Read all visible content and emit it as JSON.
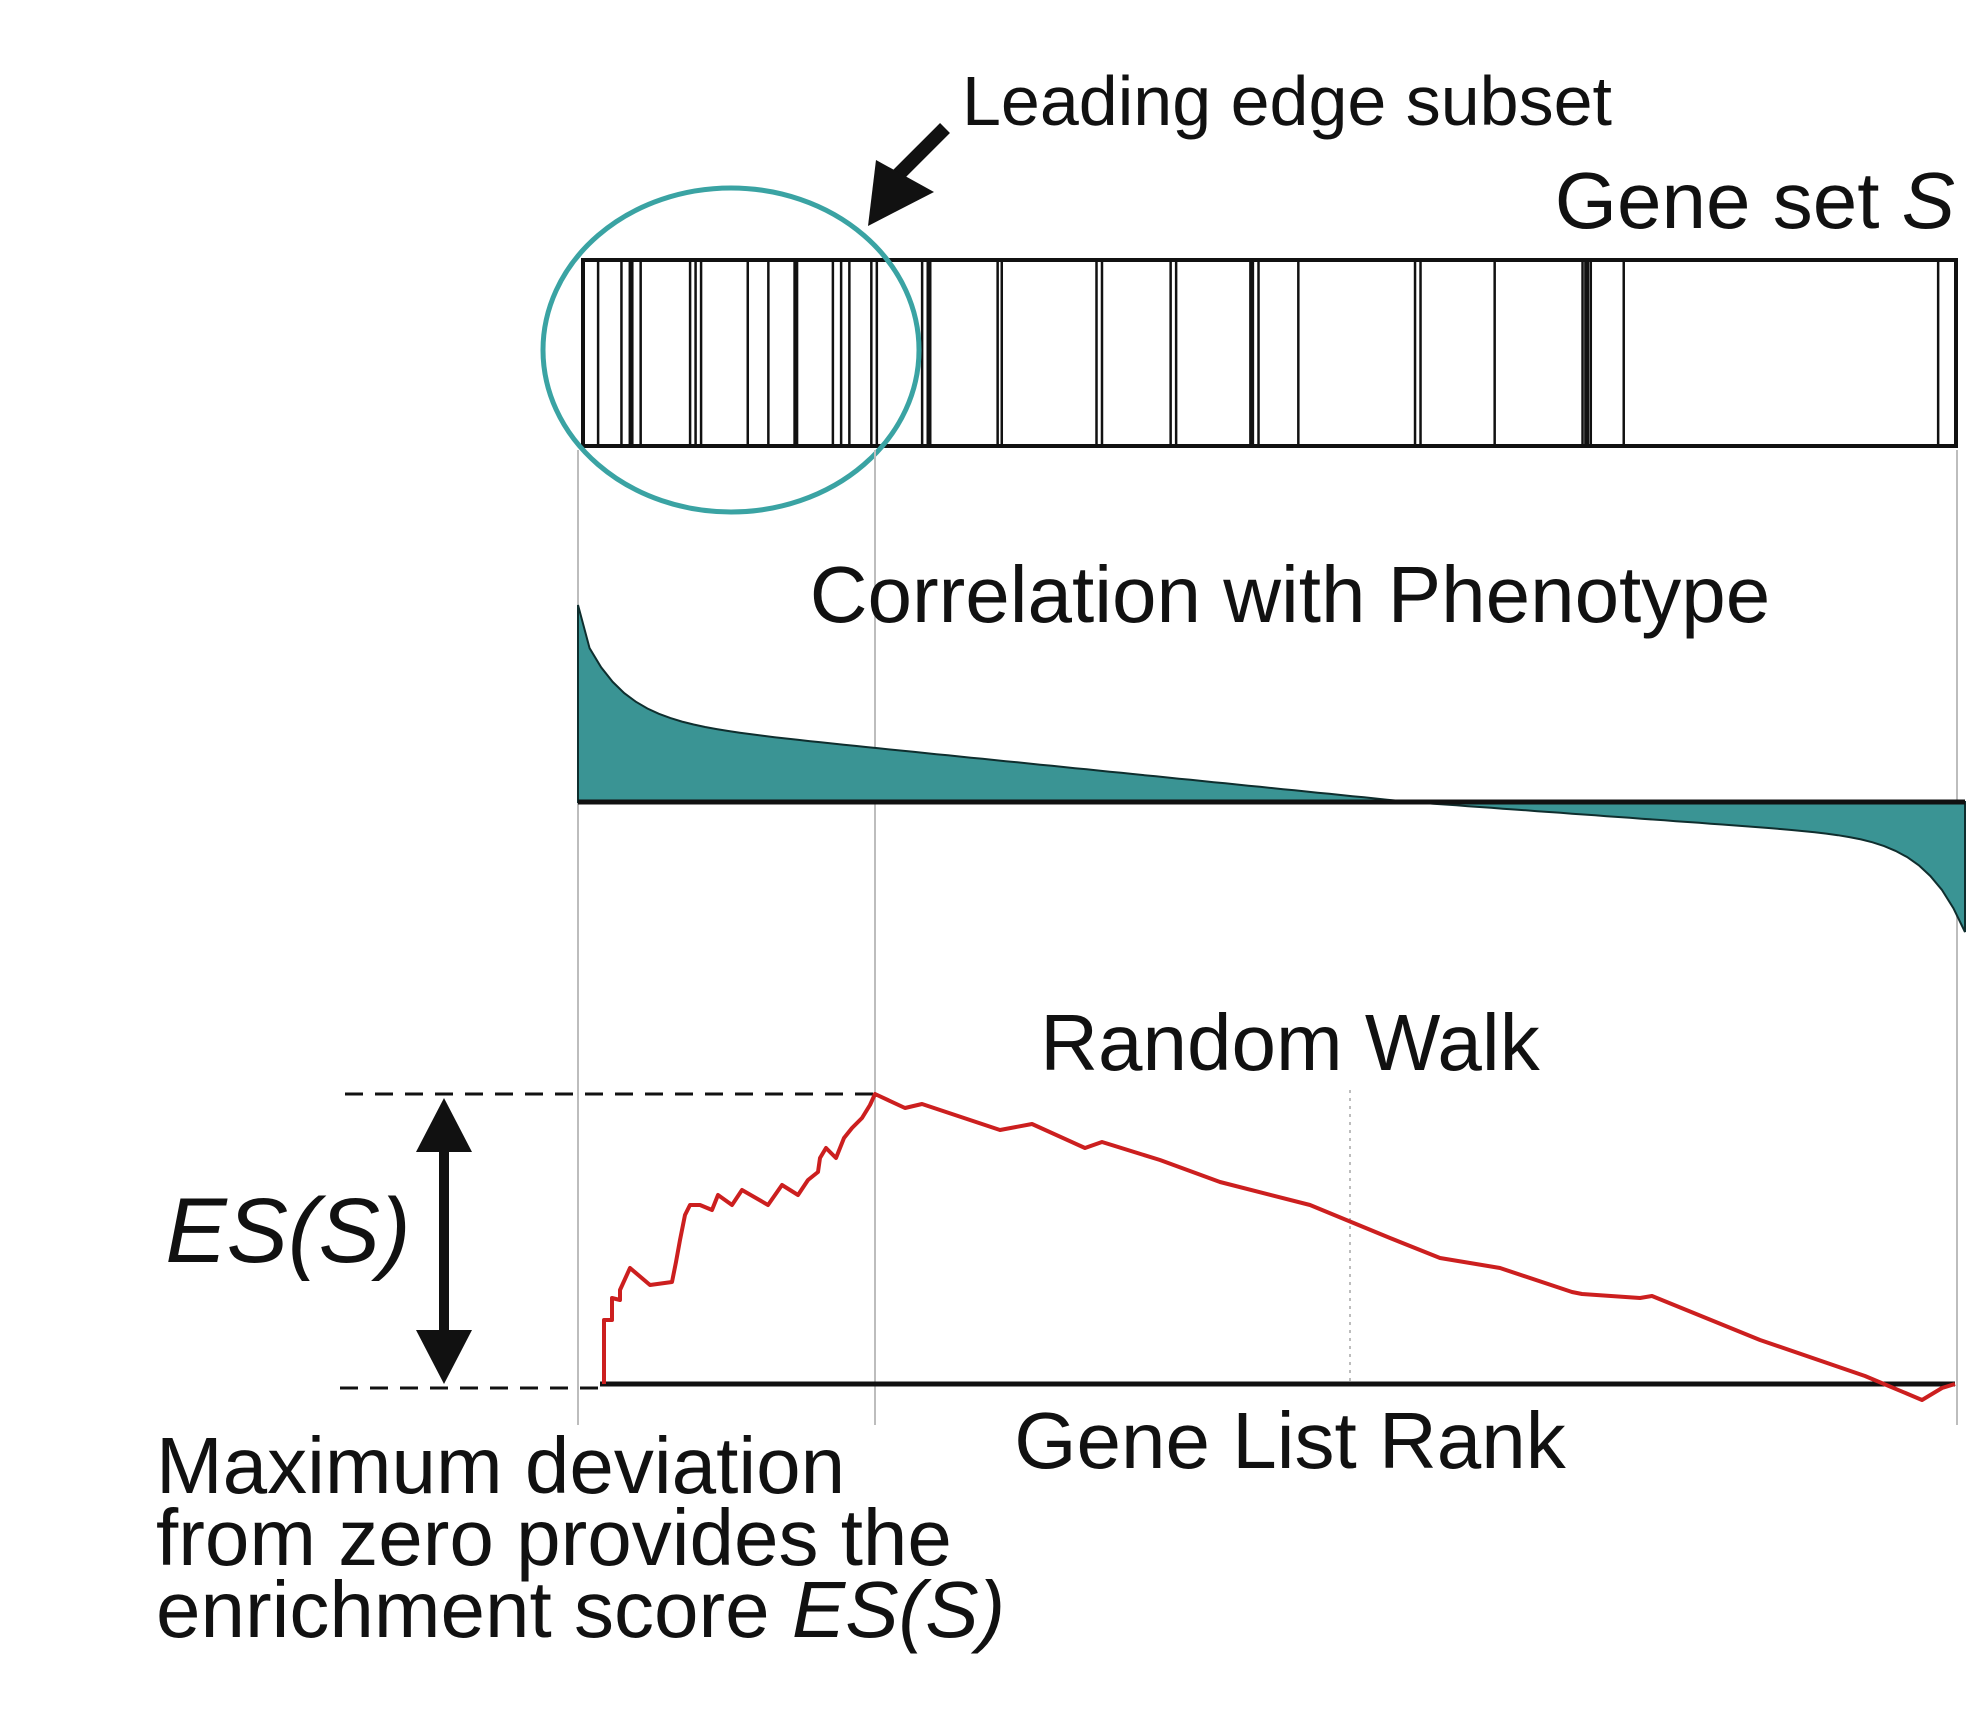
{
  "labels": {
    "leading_edge": "Leading edge subset",
    "gene_set_prefix": "Gene set ",
    "gene_set_symbol": "S",
    "correlation": "Correlation with Phenotype",
    "random_walk": "Random Walk",
    "es_label": "ES(S)",
    "gene_list_rank": "Gene List Rank",
    "caption_line1": "Maximum deviation",
    "caption_line2": "from zero provides the",
    "caption_line3_prefix": "enrichment score ",
    "caption_line3_symbol": "ES(S)"
  },
  "colors": {
    "accent_teal": "#3a9494",
    "circle_stroke": "#3aa3a3",
    "walk_line": "#cc1f1f",
    "ink": "#111111"
  },
  "gene_set_hits": [
    0.0,
    0.011,
    0.028,
    0.035,
    0.042,
    0.078,
    0.082,
    0.086,
    0.12,
    0.135,
    0.155,
    0.182,
    0.188,
    0.194,
    0.21,
    0.214,
    0.247,
    0.252,
    0.302,
    0.305,
    0.374,
    0.378,
    0.428,
    0.432,
    0.487,
    0.492,
    0.521,
    0.606,
    0.61,
    0.664,
    0.728,
    0.731,
    0.734,
    0.758,
    0.987
  ]
}
